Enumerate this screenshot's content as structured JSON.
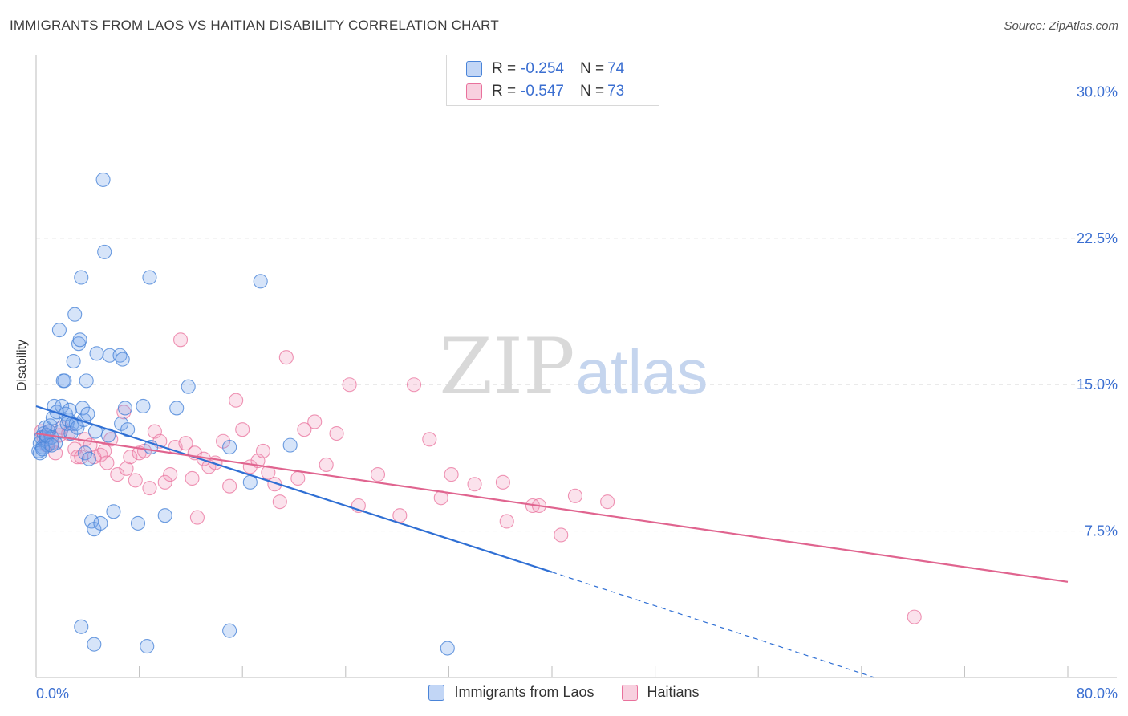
{
  "title": "IMMIGRANTS FROM LAOS VS HAITIAN DISABILITY CORRELATION CHART",
  "source": "Source: ZipAtlas.com",
  "watermark": {
    "zip": "ZIP",
    "atlas": "atlas"
  },
  "legend": {
    "rows": [
      {
        "r_label": "R = ",
        "r_value": "-0.254",
        "n_label": "N = ",
        "n_value": "74"
      },
      {
        "r_label": "R = ",
        "r_value": "-0.547",
        "n_label": "N = ",
        "n_value": "73"
      }
    ]
  },
  "bottom_legend": [
    "Immigrants from Laos",
    "Haitians"
  ],
  "colors": {
    "blue": "#4a84d8",
    "blue_fill": "rgba(120,165,235,0.30)",
    "pink": "#e9719c",
    "pink_fill": "rgba(240,150,185,0.28)",
    "blue_line": "#2f6fd4",
    "pink_line": "#e0648f"
  },
  "chart_data": {
    "type": "scatter",
    "title": "IMMIGRANTS FROM LAOS VS HAITIAN DISABILITY CORRELATION CHART",
    "xlabel": "",
    "ylabel": "Disability",
    "xlim": [
      0,
      80
    ],
    "ylim": [
      0,
      31.5
    ],
    "x_tick_labels": [
      "0.0%",
      "80.0%"
    ],
    "y_ticks": [
      7.5,
      15.0,
      22.5,
      30.0
    ],
    "y_tick_labels": [
      "7.5%",
      "15.0%",
      "22.5%",
      "30.0%"
    ],
    "grid": "horizontal dashed",
    "legend_position": "top-center",
    "series": [
      {
        "name": "Immigrants from Laos",
        "color": "#4a84d8",
        "trend": {
          "x0": 0,
          "y0": 13.9,
          "x1": 40,
          "y1": 5.4,
          "dashed_to_x": 65,
          "dashed_to_y": 0.0
        },
        "points": [
          [
            0.2,
            11.6
          ],
          [
            0.3,
            12.0
          ],
          [
            0.4,
            12.3
          ],
          [
            0.5,
            11.8
          ],
          [
            0.6,
            12.5
          ],
          [
            0.7,
            12.8
          ],
          [
            0.8,
            12.2
          ],
          [
            0.9,
            11.9
          ],
          [
            1.0,
            12.6
          ],
          [
            1.1,
            12.9
          ],
          [
            1.2,
            12.3
          ],
          [
            1.3,
            13.3
          ],
          [
            1.4,
            13.9
          ],
          [
            1.5,
            12.0
          ],
          [
            1.6,
            13.6
          ],
          [
            1.8,
            17.8
          ],
          [
            1.9,
            12.6
          ],
          [
            2.0,
            13.9
          ],
          [
            2.1,
            15.2
          ],
          [
            2.2,
            15.2
          ],
          [
            2.3,
            13.5
          ],
          [
            2.4,
            13.0
          ],
          [
            2.5,
            13.2
          ],
          [
            2.6,
            13.7
          ],
          [
            2.7,
            12.5
          ],
          [
            2.8,
            13.0
          ],
          [
            2.9,
            16.2
          ],
          [
            3.0,
            18.6
          ],
          [
            3.1,
            13.0
          ],
          [
            3.2,
            12.8
          ],
          [
            3.3,
            17.1
          ],
          [
            3.4,
            17.3
          ],
          [
            3.5,
            20.5
          ],
          [
            3.6,
            13.8
          ],
          [
            3.7,
            13.2
          ],
          [
            3.8,
            11.5
          ],
          [
            3.9,
            15.2
          ],
          [
            4.0,
            13.5
          ],
          [
            4.1,
            11.2
          ],
          [
            4.3,
            8.0
          ],
          [
            4.5,
            7.6
          ],
          [
            4.6,
            12.6
          ],
          [
            4.7,
            16.6
          ],
          [
            5.0,
            7.9
          ],
          [
            5.2,
            25.5
          ],
          [
            5.3,
            21.8
          ],
          [
            5.6,
            12.4
          ],
          [
            5.7,
            16.5
          ],
          [
            6.0,
            8.5
          ],
          [
            6.5,
            16.5
          ],
          [
            6.6,
            13.0
          ],
          [
            6.7,
            16.3
          ],
          [
            6.9,
            13.8
          ],
          [
            7.1,
            12.7
          ],
          [
            7.9,
            7.9
          ],
          [
            8.3,
            13.9
          ],
          [
            8.8,
            20.5
          ],
          [
            8.9,
            11.8
          ],
          [
            10.0,
            8.3
          ],
          [
            10.9,
            13.8
          ],
          [
            11.8,
            14.9
          ],
          [
            15.0,
            11.8
          ],
          [
            16.6,
            10.0
          ],
          [
            17.4,
            20.3
          ],
          [
            19.7,
            11.9
          ],
          [
            3.5,
            2.6
          ],
          [
            4.5,
            1.7
          ],
          [
            8.6,
            1.6
          ],
          [
            15.0,
            2.4
          ],
          [
            31.9,
            1.5
          ],
          [
            0.3,
            11.5
          ],
          [
            0.5,
            11.7
          ],
          [
            0.8,
            12.4
          ],
          [
            1.2,
            11.9
          ]
        ]
      },
      {
        "name": "Haitians",
        "color": "#e9719c",
        "trend": {
          "x0": 0,
          "y0": 12.5,
          "x1": 80,
          "y1": 4.9
        },
        "points": [
          [
            0.4,
            12.6
          ],
          [
            0.6,
            12.3
          ],
          [
            0.8,
            11.9
          ],
          [
            1.0,
            12.6
          ],
          [
            1.2,
            12.0
          ],
          [
            1.5,
            11.5
          ],
          [
            1.8,
            12.4
          ],
          [
            2.0,
            12.8
          ],
          [
            2.5,
            12.5
          ],
          [
            3.0,
            11.7
          ],
          [
            3.2,
            11.3
          ],
          [
            3.5,
            11.3
          ],
          [
            3.8,
            12.2
          ],
          [
            4.2,
            11.9
          ],
          [
            4.5,
            11.3
          ],
          [
            5.0,
            11.4
          ],
          [
            5.3,
            11.6
          ],
          [
            5.5,
            11.0
          ],
          [
            5.8,
            12.2
          ],
          [
            6.3,
            10.4
          ],
          [
            6.8,
            13.6
          ],
          [
            7.0,
            10.7
          ],
          [
            7.3,
            11.3
          ],
          [
            7.7,
            10.1
          ],
          [
            8.0,
            11.5
          ],
          [
            8.4,
            11.6
          ],
          [
            8.8,
            9.7
          ],
          [
            9.2,
            12.6
          ],
          [
            9.6,
            12.1
          ],
          [
            10.0,
            10.0
          ],
          [
            10.4,
            10.4
          ],
          [
            10.8,
            11.8
          ],
          [
            11.2,
            17.3
          ],
          [
            11.6,
            12.0
          ],
          [
            12.1,
            10.2
          ],
          [
            12.3,
            11.5
          ],
          [
            12.5,
            8.2
          ],
          [
            13.0,
            11.2
          ],
          [
            13.4,
            10.8
          ],
          [
            13.9,
            11.0
          ],
          [
            14.5,
            12.1
          ],
          [
            15.0,
            9.8
          ],
          [
            15.5,
            14.2
          ],
          [
            16.0,
            12.7
          ],
          [
            16.6,
            10.8
          ],
          [
            17.2,
            11.1
          ],
          [
            17.6,
            11.6
          ],
          [
            18.0,
            10.5
          ],
          [
            18.5,
            9.9
          ],
          [
            18.9,
            9.0
          ],
          [
            19.4,
            16.4
          ],
          [
            20.3,
            10.2
          ],
          [
            20.8,
            12.7
          ],
          [
            21.6,
            13.1
          ],
          [
            22.5,
            10.9
          ],
          [
            23.3,
            12.5
          ],
          [
            24.3,
            15.0
          ],
          [
            25.0,
            8.8
          ],
          [
            26.5,
            10.4
          ],
          [
            28.2,
            8.3
          ],
          [
            29.3,
            15.0
          ],
          [
            30.5,
            12.2
          ],
          [
            31.4,
            9.2
          ],
          [
            32.2,
            10.4
          ],
          [
            34.0,
            9.9
          ],
          [
            36.2,
            10.0
          ],
          [
            36.5,
            8.0
          ],
          [
            38.5,
            8.8
          ],
          [
            39.0,
            8.8
          ],
          [
            40.7,
            7.3
          ],
          [
            41.8,
            9.3
          ],
          [
            44.3,
            9.0
          ],
          [
            68.1,
            3.1
          ]
        ]
      }
    ]
  }
}
